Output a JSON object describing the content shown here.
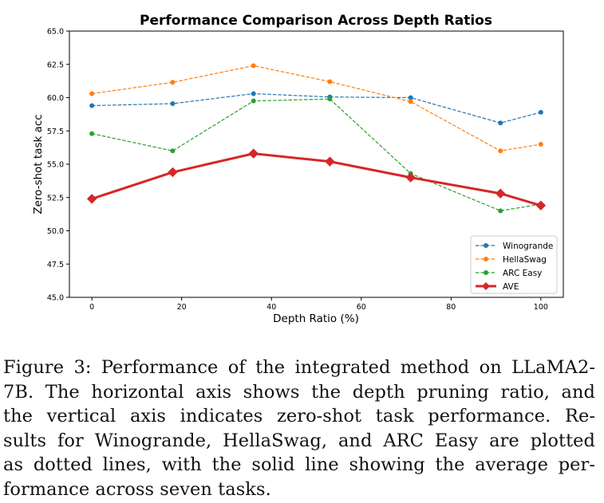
{
  "chart_data": {
    "type": "line",
    "title": "Performance Comparison Across Depth Ratios",
    "xlabel": "Depth Ratio (%)",
    "ylabel": "Zero-shot task acc",
    "xlim": [
      -5,
      105
    ],
    "ylim": [
      45.0,
      65.0
    ],
    "x": [
      0,
      18,
      36,
      53,
      71,
      91,
      100
    ],
    "xticks": [
      0,
      20,
      40,
      60,
      80,
      100
    ],
    "xtick_labels": [
      "0",
      "20",
      "40",
      "60",
      "80",
      "100"
    ],
    "yticks": [
      45.0,
      47.5,
      50.0,
      52.5,
      55.0,
      57.5,
      60.0,
      62.5,
      65.0
    ],
    "ytick_labels": [
      "45.0",
      "47.5",
      "50.0",
      "52.5",
      "55.0",
      "57.5",
      "60.0",
      "62.5",
      "65.0"
    ],
    "grid": false,
    "legend_position": "lower-right",
    "series": [
      {
        "name": "Winogrande",
        "color": "#1f77b4",
        "style": "dashed",
        "marker": "circle",
        "values": [
          59.4,
          59.55,
          60.3,
          60.05,
          60.0,
          58.1,
          58.9
        ]
      },
      {
        "name": "HellaSwag",
        "color": "#ff7f0e",
        "style": "dashed",
        "marker": "circle",
        "values": [
          60.3,
          61.15,
          62.4,
          61.2,
          59.7,
          56.0,
          56.5
        ]
      },
      {
        "name": "ARC Easy",
        "color": "#2ca02c",
        "style": "dashed",
        "marker": "circle",
        "values": [
          57.3,
          56.0,
          59.75,
          59.9,
          54.3,
          51.5,
          52.0
        ]
      },
      {
        "name": "AVE",
        "color": "#d62728",
        "style": "solid",
        "marker": "diamond",
        "values": [
          52.4,
          54.4,
          55.8,
          55.2,
          54.0,
          52.8,
          51.9
        ]
      }
    ]
  },
  "caption": {
    "lines": [
      "Figure 3: Performance of the integrated method on LLaMA2-",
      "7B. The horizontal axis shows the depth pruning ratio, and",
      "the vertical axis indicates zero-shot task performance. Re-",
      "sults for Winogrande, HellaSwag, and ARC Easy are plotted",
      "as dotted lines, with the solid line showing the average per-",
      "formance across seven tasks."
    ]
  }
}
